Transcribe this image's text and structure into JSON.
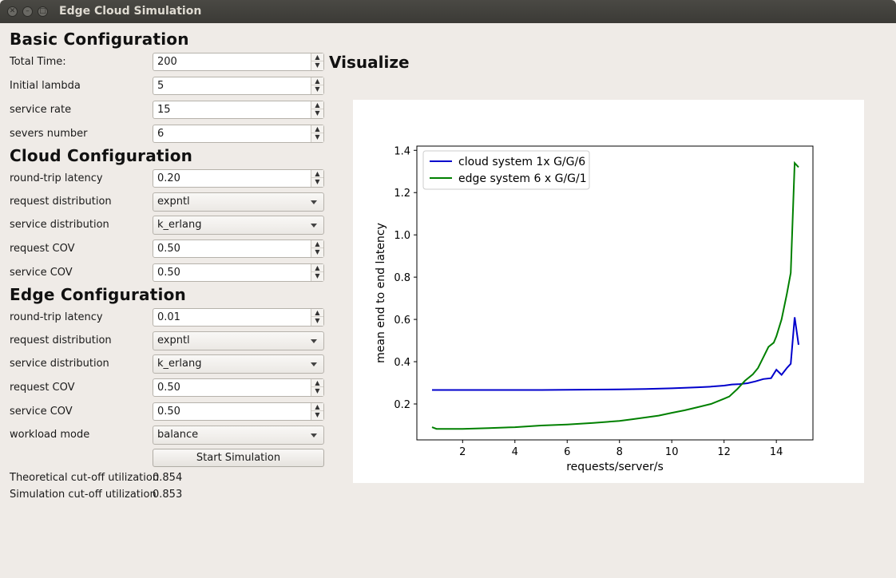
{
  "window": {
    "title": "Edge Cloud Simulation"
  },
  "basic": {
    "title": "Basic Configuration",
    "total_time": {
      "label": "Total Time:",
      "value": "200"
    },
    "initial_lambda": {
      "label": "Initial lambda",
      "value": "5"
    },
    "service_rate": {
      "label": "service rate",
      "value": "15"
    },
    "servers_number": {
      "label": "severs number",
      "value": "6"
    }
  },
  "cloud": {
    "title": "Cloud Configuration",
    "latency": {
      "label": "round-trip latency",
      "value": "0.20"
    },
    "request_dist": {
      "label": "request distribution",
      "value": "expntl"
    },
    "service_dist": {
      "label": "service distribution",
      "value": "k_erlang"
    },
    "request_cov": {
      "label": "request COV",
      "value": "0.50"
    },
    "service_cov": {
      "label": "service COV",
      "value": "0.50"
    }
  },
  "edge": {
    "title": "Edge Configuration",
    "latency": {
      "label": "round-trip latency",
      "value": "0.01"
    },
    "request_dist": {
      "label": "request distribution",
      "value": "expntl"
    },
    "service_dist": {
      "label": "service distribution",
      "value": "k_erlang"
    },
    "request_cov": {
      "label": "request COV",
      "value": "0.50"
    },
    "service_cov": {
      "label": "service COV",
      "value": "0.50"
    },
    "workload_mode": {
      "label": "workload mode",
      "value": "balance"
    }
  },
  "actions": {
    "start": "Start Simulation"
  },
  "results": {
    "theoretical": {
      "label": "Theoretical cut-off utilization",
      "value": "0.854"
    },
    "simulation": {
      "label": "Simulation cut-off utilization",
      "value": "0.853"
    }
  },
  "visualize": {
    "title": "Visualize"
  },
  "chart_data": {
    "type": "line",
    "title": "",
    "xlabel": "requests/server/s",
    "ylabel": "mean end to end latency",
    "xlim": [
      0.25,
      15.4
    ],
    "ylim": [
      0.03,
      1.42
    ],
    "xticks": [
      2,
      4,
      6,
      8,
      10,
      12,
      14
    ],
    "yticks": [
      0.2,
      0.4,
      0.6,
      0.8,
      1.0,
      1.2,
      1.4
    ],
    "ytick_labels": [
      "0.2",
      "0.4",
      "0.6",
      "0.8",
      "1.0",
      "1.2",
      "1.4"
    ],
    "legend_position": "top-left",
    "series": [
      {
        "name": "cloud system 1x G/G/6",
        "color": "#0000cc",
        "x": [
          0.83,
          2,
          3,
          4,
          5,
          6,
          7,
          8,
          9,
          10,
          11,
          11.5,
          12,
          12.3,
          12.6,
          12.9,
          13.2,
          13.5,
          13.8,
          14.0,
          14.2,
          14.4,
          14.55,
          14.7,
          14.85
        ],
        "y": [
          0.266,
          0.266,
          0.266,
          0.266,
          0.266,
          0.267,
          0.268,
          0.269,
          0.271,
          0.274,
          0.279,
          0.282,
          0.287,
          0.292,
          0.294,
          0.298,
          0.307,
          0.318,
          0.322,
          0.362,
          0.338,
          0.37,
          0.39,
          0.61,
          0.48
        ]
      },
      {
        "name": "edge system 6 x G/G/1",
        "color": "#008000",
        "x": [
          0.83,
          1,
          2,
          3,
          4,
          5,
          6,
          7,
          8,
          8.5,
          9,
          9.5,
          10,
          10.5,
          11,
          11.5,
          12,
          12.2,
          12.5,
          12.8,
          13.1,
          13.3,
          13.5,
          13.7,
          13.9,
          14.0,
          14.2,
          14.4,
          14.55,
          14.7,
          14.85
        ],
        "y": [
          0.09,
          0.082,
          0.082,
          0.086,
          0.09,
          0.098,
          0.103,
          0.11,
          0.12,
          0.128,
          0.136,
          0.145,
          0.158,
          0.17,
          0.185,
          0.2,
          0.225,
          0.235,
          0.27,
          0.31,
          0.34,
          0.37,
          0.42,
          0.47,
          0.49,
          0.52,
          0.6,
          0.72,
          0.82,
          1.34,
          1.32
        ]
      }
    ]
  }
}
